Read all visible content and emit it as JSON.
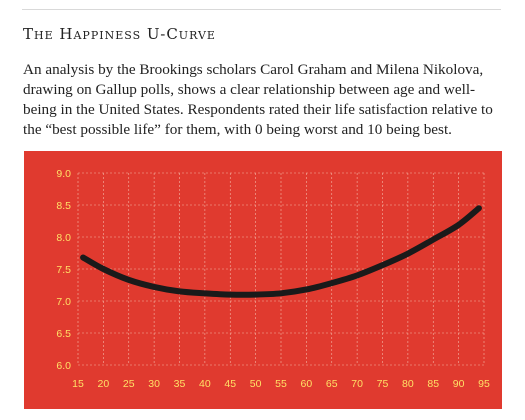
{
  "article": {
    "heading": "The Happiness U-Curve",
    "intro": "An analysis by the Brookings scholars Carol Graham and Milena Nikolova, drawing on Gallup polls, shows a clear relationship between age and well-being in the United States. Respondents rated their life satisfaction relative to the “best possible life” for them, with 0 being worst and 10 being best."
  },
  "colors": {
    "background": "#e03a2f",
    "curve": "#1a1a1a",
    "tick_labels": "#ffe066",
    "grid": "#f4b6a6"
  },
  "chart_data": {
    "type": "line",
    "title": "",
    "xlabel": "",
    "ylabel": "",
    "xlim": [
      15,
      95
    ],
    "ylim": [
      6.0,
      9.0
    ],
    "xticks": [
      15,
      20,
      25,
      30,
      35,
      40,
      45,
      50,
      55,
      60,
      65,
      70,
      75,
      80,
      85,
      90,
      95
    ],
    "xtick_labels": [
      "15",
      "20",
      "25",
      "30",
      "35",
      "40",
      "45",
      "50",
      "55",
      "60",
      "65",
      "70",
      "75",
      "80",
      "85",
      "90",
      "95"
    ],
    "yticks": [
      6.0,
      6.5,
      7.0,
      7.5,
      8.0,
      8.5,
      9.0
    ],
    "ytick_labels": [
      "6.0",
      "6.5",
      "7.0",
      "7.5",
      "8.0",
      "8.5",
      "9.0"
    ],
    "grid": true,
    "legend": "none",
    "series": [
      {
        "x": [
          16,
          20,
          25,
          30,
          35,
          40,
          45,
          50,
          55,
          60,
          65,
          70,
          75,
          80,
          85,
          90,
          94
        ],
        "y": [
          7.68,
          7.5,
          7.33,
          7.22,
          7.15,
          7.12,
          7.1,
          7.1,
          7.12,
          7.18,
          7.28,
          7.4,
          7.56,
          7.74,
          7.96,
          8.19,
          8.45
        ]
      }
    ]
  }
}
